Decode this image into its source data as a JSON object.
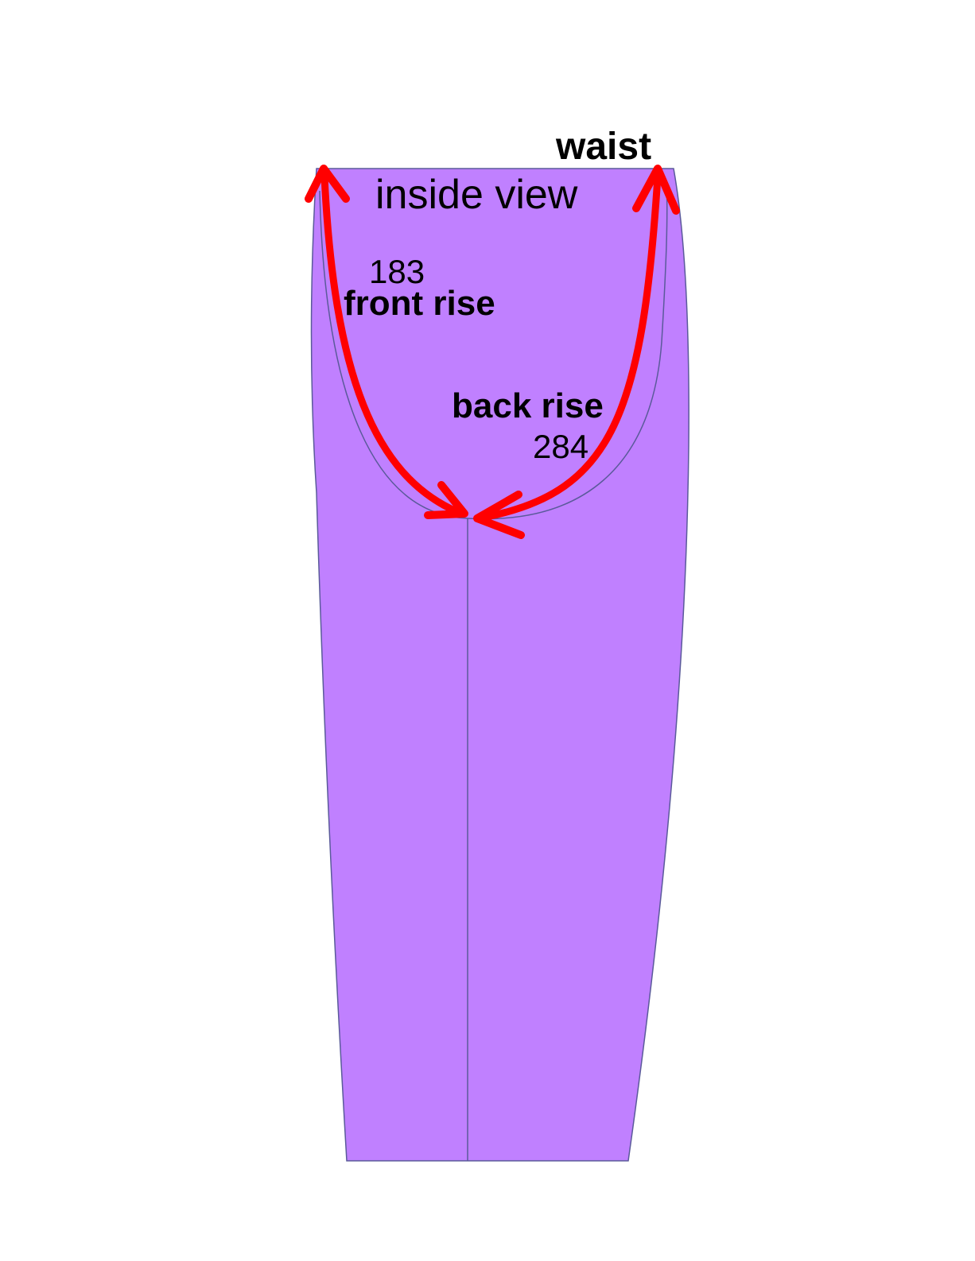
{
  "labels": {
    "waist": "waist",
    "view": "inside view",
    "front_rise_value": "183",
    "front_rise": "front rise",
    "back_rise": "back rise",
    "back_rise_value": "284"
  },
  "colors": {
    "fabric": "#c080ff",
    "outline": "#5a5a9a",
    "arrow": "#ff0000",
    "text": "#000000",
    "background": "#ffffff"
  }
}
